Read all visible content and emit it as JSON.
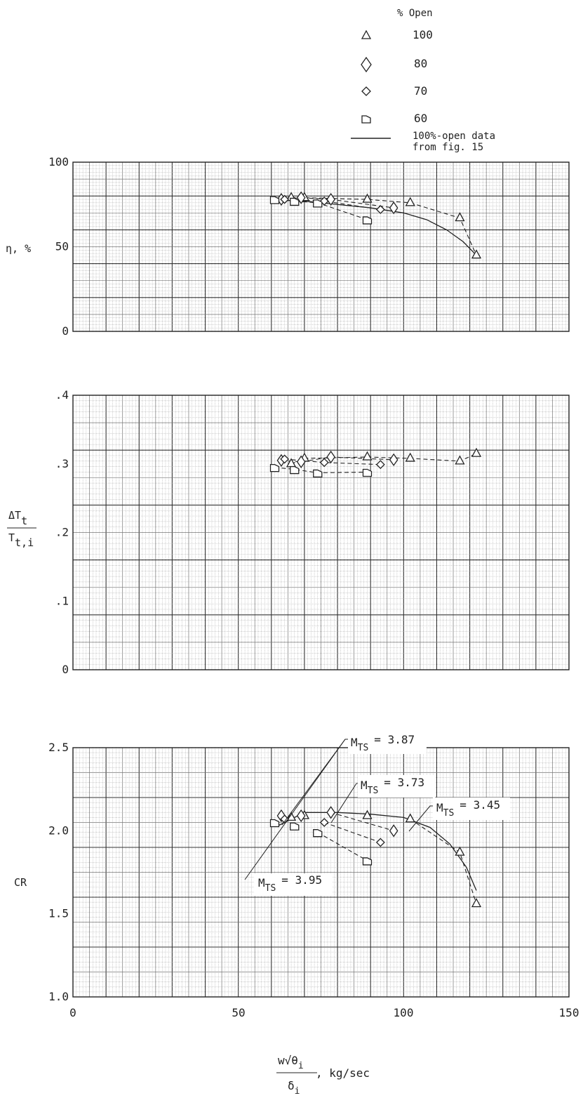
{
  "legend": {
    "header": "% Open",
    "entries": [
      {
        "marker": "open-triangle-icon",
        "label": "100"
      },
      {
        "marker": "open-diamond-icon",
        "label": "80"
      },
      {
        "marker": "open-small-diamond-icon",
        "label": "70"
      },
      {
        "marker": "open-flagged-square-icon",
        "label": "60"
      }
    ],
    "line_label_1": "100%-open data",
    "line_label_2": "from fig. 15"
  },
  "xaxis": {
    "ticks": [
      "0",
      "50",
      "100",
      "150"
    ],
    "label_num": "w√θ",
    "label_num_sub": "i",
    "label_den": "δ",
    "label_den_sub": "i",
    "label_unit": ", kg/sec"
  },
  "chart_data": [
    {
      "type": "scatter",
      "ylabel": "η, %",
      "ylim": [
        0,
        100
      ],
      "xlim": [
        0,
        150
      ],
      "yticks": [
        "0",
        "50",
        "100"
      ],
      "grid": true,
      "series": [
        {
          "name": "100",
          "marker": "triangle",
          "points": [
            [
              66,
              79
            ],
            [
              70,
              79
            ],
            [
              89,
              78
            ],
            [
              102,
              76
            ],
            [
              117,
              67
            ],
            [
              122,
              45
            ]
          ]
        },
        {
          "name": "80",
          "marker": "diamond",
          "points": [
            [
              63,
              78
            ],
            [
              69,
              79
            ],
            [
              78,
              78
            ],
            [
              97,
              73
            ]
          ]
        },
        {
          "name": "70",
          "marker": "small-diamond",
          "points": [
            [
              64,
              78
            ],
            [
              76,
              77
            ],
            [
              93,
              72
            ]
          ]
        },
        {
          "name": "60",
          "marker": "flagged-square",
          "points": [
            [
              61,
              78
            ],
            [
              67,
              77
            ],
            [
              74,
              76
            ],
            [
              89,
              66
            ]
          ]
        },
        {
          "name": "100%-open data from fig. 15",
          "style": "solid-line",
          "points": [
            [
              62,
              78
            ],
            [
              70,
              77
            ],
            [
              80,
              75
            ],
            [
              90,
              73
            ],
            [
              100,
              70
            ],
            [
              107,
              66
            ],
            [
              113,
              60
            ],
            [
              118,
              53
            ],
            [
              122,
              45
            ]
          ]
        }
      ]
    },
    {
      "type": "scatter",
      "ylabel": "ΔTt / Tt,i",
      "ylim": [
        0,
        0.4
      ],
      "xlim": [
        0,
        150
      ],
      "yticks": [
        "0",
        ".1",
        ".2",
        ".3",
        ".4"
      ],
      "grid": true,
      "series": [
        {
          "name": "100",
          "marker": "triangle",
          "points": [
            [
              66,
              0.3
            ],
            [
              70,
              0.308
            ],
            [
              89,
              0.31
            ],
            [
              102,
              0.308
            ],
            [
              117,
              0.304
            ],
            [
              122,
              0.315
            ]
          ]
        },
        {
          "name": "80",
          "marker": "diamond",
          "points": [
            [
              63,
              0.305
            ],
            [
              69,
              0.303
            ],
            [
              78,
              0.31
            ],
            [
              97,
              0.306
            ]
          ]
        },
        {
          "name": "70",
          "marker": "small-diamond",
          "points": [
            [
              64,
              0.307
            ],
            [
              76,
              0.302
            ],
            [
              93,
              0.299
            ]
          ]
        },
        {
          "name": "60",
          "marker": "flagged-square",
          "points": [
            [
              61,
              0.295
            ],
            [
              67,
              0.292
            ],
            [
              74,
              0.287
            ],
            [
              89,
              0.288
            ]
          ]
        }
      ]
    },
    {
      "type": "scatter",
      "ylabel": "CR",
      "ylim": [
        1.0,
        2.5
      ],
      "xlim": [
        0,
        150
      ],
      "yticks": [
        "1.0",
        "1.5",
        "2.0",
        "2.5"
      ],
      "grid": true,
      "series": [
        {
          "name": "100",
          "marker": "triangle",
          "points": [
            [
              66,
              2.08
            ],
            [
              70,
              2.09
            ],
            [
              89,
              2.09
            ],
            [
              102,
              2.07
            ],
            [
              117,
              1.87
            ],
            [
              122,
              1.56
            ]
          ]
        },
        {
          "name": "80",
          "marker": "diamond",
          "points": [
            [
              63,
              2.09
            ],
            [
              69,
              2.09
            ],
            [
              78,
              2.11
            ],
            [
              97,
              2.0
            ]
          ]
        },
        {
          "name": "70",
          "marker": "small-diamond",
          "points": [
            [
              64,
              2.07
            ],
            [
              76,
              2.05
            ],
            [
              93,
              1.93
            ]
          ]
        },
        {
          "name": "60",
          "marker": "flagged-square",
          "points": [
            [
              61,
              2.05
            ],
            [
              67,
              2.03
            ],
            [
              74,
              1.99
            ],
            [
              89,
              1.82
            ]
          ]
        },
        {
          "name": "100%-open data from fig. 15",
          "style": "solid-line",
          "points": [
            [
              62,
              2.03
            ],
            [
              70,
              2.11
            ],
            [
              80,
              2.11
            ],
            [
              90,
              2.1
            ],
            [
              100,
              2.08
            ],
            [
              108,
              2.02
            ],
            [
              114,
              1.92
            ],
            [
              119,
              1.78
            ],
            [
              122,
              1.64
            ]
          ]
        }
      ],
      "annotations": [
        {
          "label": "M",
          "sub": "TS",
          "value": "= 3.87"
        },
        {
          "label": "M",
          "sub": "TS",
          "value": "= 3.73"
        },
        {
          "label": "M",
          "sub": "TS",
          "value": "= 3.45"
        },
        {
          "label": "M",
          "sub": "TS",
          "value": "= 3.95"
        }
      ]
    }
  ]
}
